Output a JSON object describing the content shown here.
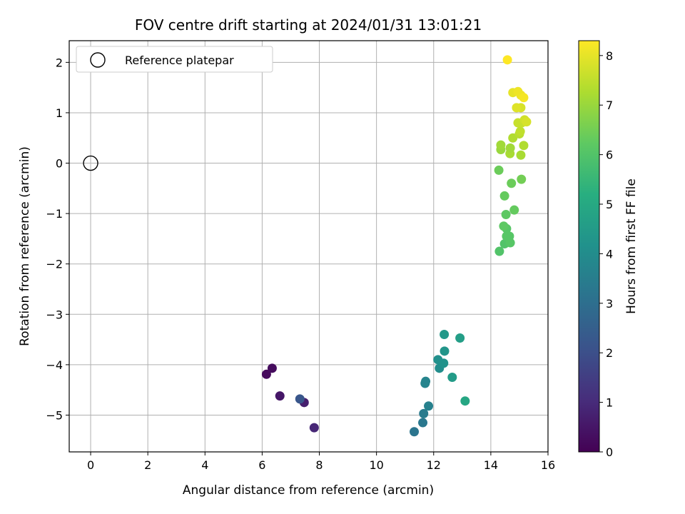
{
  "chart_data": {
    "type": "scatter",
    "title": "FOV centre drift starting at 2024/01/31 13:01:21",
    "xlabel": "Angular distance from reference (arcmin)",
    "ylabel": "Rotation from reference (arcmin)",
    "xlim": [
      -0.75,
      16.0
    ],
    "ylim": [
      -5.73,
      2.43
    ],
    "xticks": [
      0,
      2,
      4,
      6,
      8,
      10,
      12,
      14,
      16
    ],
    "yticks": [
      -5,
      -4,
      -3,
      -2,
      -1,
      0,
      1,
      2
    ],
    "grid": true,
    "legend": {
      "placement": "top-left",
      "entries": [
        {
          "label": "Reference platepar",
          "marker": "open-circle",
          "color": "#000000"
        }
      ]
    },
    "reference": {
      "x": 0,
      "y": 0
    },
    "colorbar": {
      "label": "Hours from first FF file",
      "min": 0,
      "max": 8.3,
      "ticks": [
        0,
        1,
        2,
        3,
        4,
        5,
        6,
        7,
        8
      ],
      "colormap": "viridis"
    },
    "points": [
      {
        "x": 6.15,
        "y": -4.19,
        "c": 0.2
      },
      {
        "x": 6.35,
        "y": -4.07,
        "c": 0.25
      },
      {
        "x": 6.62,
        "y": -4.62,
        "c": 0.5
      },
      {
        "x": 7.47,
        "y": -4.75,
        "c": 0.7
      },
      {
        "x": 7.82,
        "y": -5.25,
        "c": 0.9
      },
      {
        "x": 7.32,
        "y": -4.68,
        "c": 2.2
      },
      {
        "x": 11.32,
        "y": -5.33,
        "c": 3.2
      },
      {
        "x": 11.62,
        "y": -5.15,
        "c": 3.3
      },
      {
        "x": 11.65,
        "y": -4.97,
        "c": 3.4
      },
      {
        "x": 11.82,
        "y": -4.82,
        "c": 3.6
      },
      {
        "x": 11.72,
        "y": -4.33,
        "c": 3.7
      },
      {
        "x": 11.7,
        "y": -4.37,
        "c": 3.7
      },
      {
        "x": 12.2,
        "y": -4.07,
        "c": 4.0
      },
      {
        "x": 12.15,
        "y": -3.9,
        "c": 4.1
      },
      {
        "x": 12.35,
        "y": -3.97,
        "c": 4.2
      },
      {
        "x": 12.38,
        "y": -3.73,
        "c": 4.3
      },
      {
        "x": 12.37,
        "y": -3.4,
        "c": 4.4
      },
      {
        "x": 12.65,
        "y": -4.25,
        "c": 4.5
      },
      {
        "x": 12.92,
        "y": -3.47,
        "c": 4.6
      },
      {
        "x": 13.1,
        "y": -4.72,
        "c": 4.9
      },
      {
        "x": 14.3,
        "y": -1.75,
        "c": 6.0
      },
      {
        "x": 14.48,
        "y": -1.6,
        "c": 6.0
      },
      {
        "x": 14.68,
        "y": -1.58,
        "c": 6.1
      },
      {
        "x": 14.55,
        "y": -1.45,
        "c": 6.1
      },
      {
        "x": 14.65,
        "y": -1.45,
        "c": 6.1
      },
      {
        "x": 14.55,
        "y": -1.3,
        "c": 6.1
      },
      {
        "x": 14.45,
        "y": -1.25,
        "c": 6.2
      },
      {
        "x": 14.53,
        "y": -1.02,
        "c": 6.2
      },
      {
        "x": 14.82,
        "y": -0.93,
        "c": 6.3
      },
      {
        "x": 14.48,
        "y": -0.65,
        "c": 6.3
      },
      {
        "x": 14.72,
        "y": -0.4,
        "c": 6.4
      },
      {
        "x": 15.07,
        "y": -0.32,
        "c": 6.5
      },
      {
        "x": 14.28,
        "y": -0.14,
        "c": 6.4
      },
      {
        "x": 14.35,
        "y": 0.27,
        "c": 7.0
      },
      {
        "x": 14.35,
        "y": 0.36,
        "c": 7.1
      },
      {
        "x": 14.67,
        "y": 0.19,
        "c": 7.2
      },
      {
        "x": 14.68,
        "y": 0.3,
        "c": 7.1
      },
      {
        "x": 15.05,
        "y": 0.16,
        "c": 7.2
      },
      {
        "x": 15.15,
        "y": 0.35,
        "c": 7.3
      },
      {
        "x": 14.77,
        "y": 0.5,
        "c": 7.3
      },
      {
        "x": 15.0,
        "y": 0.58,
        "c": 7.4
      },
      {
        "x": 15.03,
        "y": 0.63,
        "c": 7.5
      },
      {
        "x": 14.95,
        "y": 0.8,
        "c": 7.6
      },
      {
        "x": 15.08,
        "y": 0.8,
        "c": 7.6
      },
      {
        "x": 15.18,
        "y": 0.86,
        "c": 7.7
      },
      {
        "x": 15.25,
        "y": 0.82,
        "c": 7.8
      },
      {
        "x": 15.05,
        "y": 1.1,
        "c": 7.8
      },
      {
        "x": 14.9,
        "y": 1.1,
        "c": 7.9
      },
      {
        "x": 14.77,
        "y": 1.4,
        "c": 8.0
      },
      {
        "x": 14.95,
        "y": 1.42,
        "c": 8.1
      },
      {
        "x": 15.05,
        "y": 1.35,
        "c": 8.1
      },
      {
        "x": 15.15,
        "y": 1.3,
        "c": 8.2
      },
      {
        "x": 14.58,
        "y": 2.05,
        "c": 8.3
      }
    ]
  }
}
